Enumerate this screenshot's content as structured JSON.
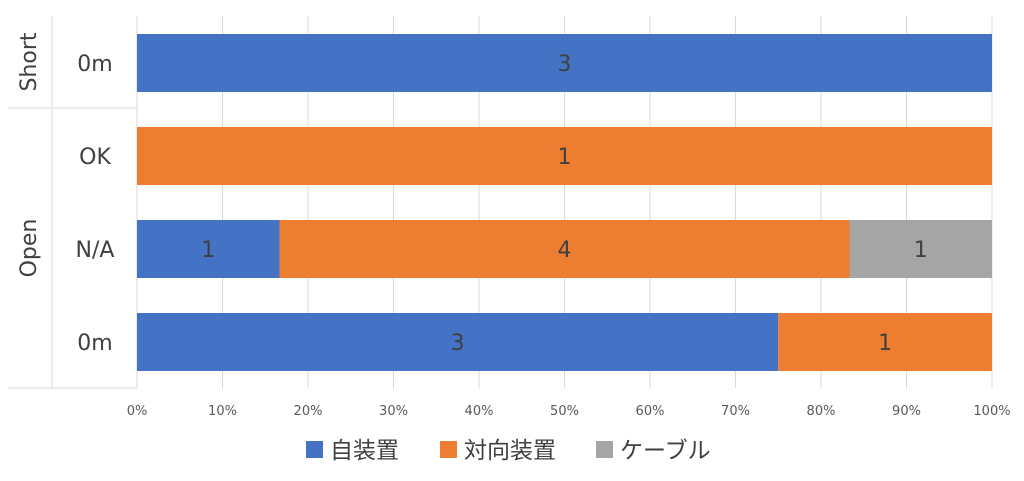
{
  "chart_data": {
    "type": "bar",
    "orientation": "horizontal",
    "stacking": "percent",
    "group_labels": [
      "Short",
      "Open"
    ],
    "categories": [
      {
        "group": "Short",
        "label": "0m"
      },
      {
        "group": "Open",
        "label": "OK"
      },
      {
        "group": "Open",
        "label": "N/A"
      },
      {
        "group": "Open",
        "label": "0m"
      }
    ],
    "series": [
      {
        "name": "自装置",
        "color": "#4472C4",
        "values": [
          3,
          0,
          1,
          3
        ]
      },
      {
        "name": "対向装置",
        "color": "#ED7D31",
        "values": [
          0,
          1,
          4,
          1
        ]
      },
      {
        "name": "ケーブル",
        "color": "#A5A5A5",
        "values": [
          0,
          0,
          1,
          0
        ]
      }
    ],
    "x_ticks": [
      "0%",
      "10%",
      "20%",
      "30%",
      "40%",
      "50%",
      "60%",
      "70%",
      "80%",
      "90%",
      "100%"
    ],
    "xlim": [
      0,
      100
    ],
    "grid": true,
    "data_labels": true,
    "legend_position": "bottom"
  }
}
